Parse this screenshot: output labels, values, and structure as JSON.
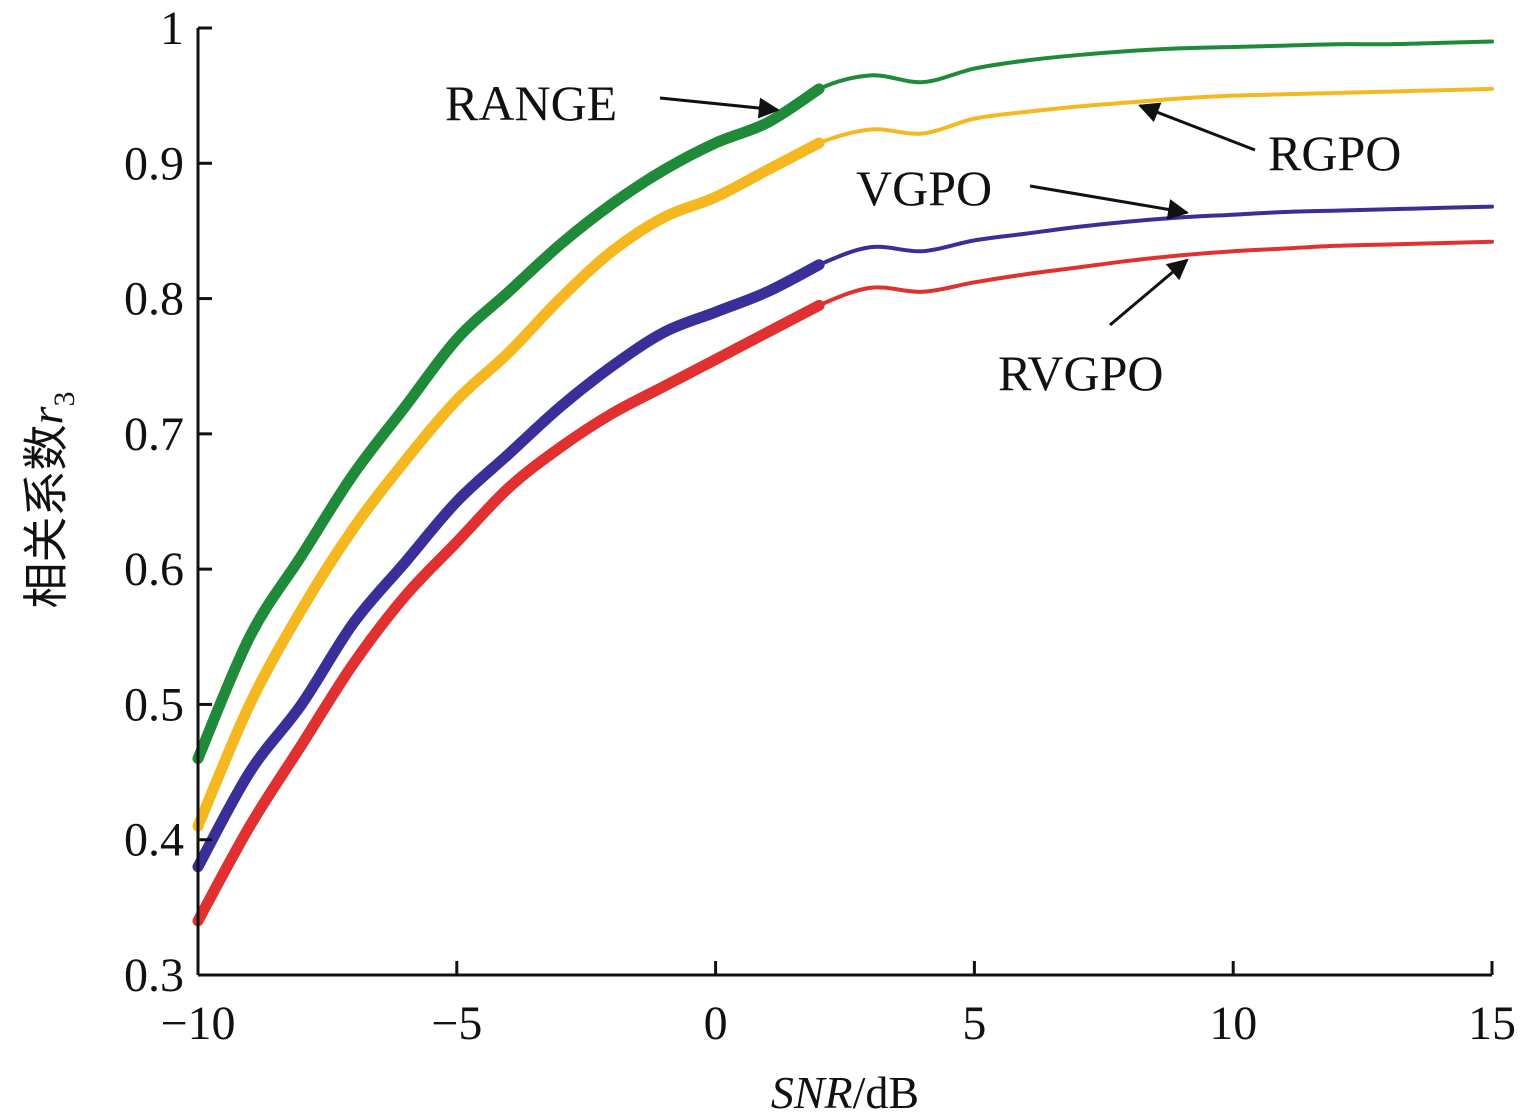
{
  "chart_data": {
    "type": "line",
    "title": "",
    "xlabel_italic": "SNR",
    "xlabel_unit": "/dB",
    "ylabel_text": "相关系数",
    "ylabel_symbol": "r",
    "ylabel_sub": "3",
    "xlim": [
      -10,
      15
    ],
    "ylim": [
      0.3,
      1.0
    ],
    "xticks": [
      -10,
      -5,
      0,
      5,
      10,
      15
    ],
    "xtick_labels": [
      "−10",
      "−5",
      "0",
      "5",
      "10",
      "15"
    ],
    "yticks": [
      0.3,
      0.4,
      0.5,
      0.6,
      0.7,
      0.8,
      0.9,
      1.0
    ],
    "ytick_labels": [
      "0.3",
      "0.4",
      "0.5",
      "0.6",
      "0.7",
      "0.8",
      "0.9",
      "1"
    ],
    "grid": false,
    "legend": "none",
    "series": [
      {
        "name": "RANGE",
        "color": "#1e8a3a",
        "x": [
          -10,
          -9,
          -8,
          -7,
          -6,
          -5,
          -4,
          -3,
          -2,
          -1,
          0,
          1,
          2,
          3,
          4,
          5,
          6,
          7,
          8,
          9,
          10,
          11,
          12,
          13,
          14,
          15
        ],
        "y": [
          0.46,
          0.55,
          0.61,
          0.67,
          0.72,
          0.77,
          0.805,
          0.84,
          0.87,
          0.895,
          0.915,
          0.93,
          0.955,
          0.965,
          0.96,
          0.97,
          0.976,
          0.98,
          0.983,
          0.985,
          0.986,
          0.987,
          0.988,
          0.988,
          0.989,
          0.99
        ]
      },
      {
        "name": "RGPO",
        "color": "#f5b820",
        "x": [
          -10,
          -9,
          -8,
          -7,
          -6,
          -5,
          -4,
          -3,
          -2,
          -1,
          0,
          1,
          2,
          3,
          4,
          5,
          6,
          7,
          8,
          9,
          10,
          11,
          12,
          13,
          14,
          15
        ],
        "y": [
          0.41,
          0.5,
          0.57,
          0.63,
          0.68,
          0.725,
          0.76,
          0.8,
          0.835,
          0.86,
          0.875,
          0.895,
          0.915,
          0.925,
          0.922,
          0.933,
          0.938,
          0.942,
          0.945,
          0.948,
          0.95,
          0.951,
          0.952,
          0.953,
          0.954,
          0.955
        ]
      },
      {
        "name": "VGPO",
        "color": "#3a2f98",
        "x": [
          -10,
          -9,
          -8,
          -7,
          -6,
          -5,
          -4,
          -3,
          -2,
          -1,
          0,
          1,
          2,
          3,
          4,
          5,
          6,
          7,
          8,
          9,
          10,
          11,
          12,
          13,
          14,
          15
        ],
        "y": [
          0.38,
          0.45,
          0.5,
          0.56,
          0.605,
          0.65,
          0.685,
          0.72,
          0.75,
          0.775,
          0.79,
          0.805,
          0.825,
          0.838,
          0.835,
          0.843,
          0.848,
          0.853,
          0.857,
          0.86,
          0.862,
          0.864,
          0.865,
          0.866,
          0.867,
          0.868
        ]
      },
      {
        "name": "RVGPO",
        "color": "#e03030",
        "x": [
          -10,
          -9,
          -8,
          -7,
          -6,
          -5,
          -4,
          -3,
          -2,
          -1,
          0,
          1,
          2,
          3,
          4,
          5,
          6,
          7,
          8,
          9,
          10,
          11,
          12,
          13,
          14,
          15
        ],
        "y": [
          0.34,
          0.41,
          0.47,
          0.53,
          0.58,
          0.62,
          0.66,
          0.69,
          0.715,
          0.735,
          0.755,
          0.775,
          0.795,
          0.808,
          0.805,
          0.812,
          0.818,
          0.823,
          0.828,
          0.832,
          0.835,
          0.837,
          0.839,
          0.84,
          0.841,
          0.842
        ]
      }
    ],
    "annotations": [
      {
        "text": "RANGE",
        "series": "RANGE",
        "x": 1.2
      },
      {
        "text": "RGPO",
        "series": "RGPO",
        "x": 8.2
      },
      {
        "text": "VGPO",
        "series": "VGPO",
        "x": 9.3
      },
      {
        "text": "RVGPO",
        "series": "RVGPO",
        "x": 9.3
      }
    ]
  }
}
